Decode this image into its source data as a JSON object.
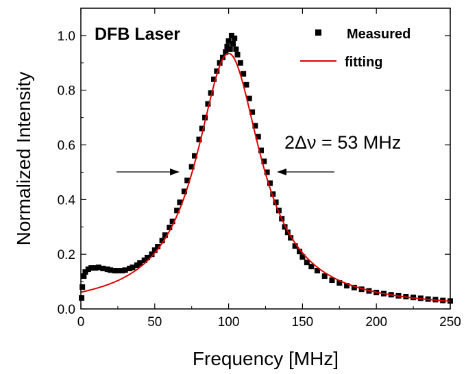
{
  "chart_data": {
    "type": "scatter",
    "title": "DFB Laser",
    "xlabel": "Frequency [MHz]",
    "ylabel": "Normalized Intensity",
    "xlim": [
      0,
      250
    ],
    "ylim": [
      0,
      1.1
    ],
    "xticks": [
      "0",
      "50",
      "100",
      "150",
      "200",
      "250"
    ],
    "yticks": [
      "0.0",
      "0.2",
      "0.4",
      "0.6",
      "0.8",
      "1.0"
    ],
    "annotation": "2Δν = 53 MHz",
    "legend_position": "top-right",
    "grid": false,
    "series": [
      {
        "name": "Measured",
        "style": "square-markers",
        "color": "#000000",
        "points": [
          [
            0.5,
            0.04
          ],
          [
            1,
            0.08
          ],
          [
            2,
            0.12
          ],
          [
            3,
            0.135
          ],
          [
            5,
            0.145
          ],
          [
            7,
            0.15
          ],
          [
            10,
            0.15
          ],
          [
            12,
            0.152
          ],
          [
            15,
            0.148
          ],
          [
            18,
            0.145
          ],
          [
            20,
            0.142
          ],
          [
            23,
            0.14
          ],
          [
            25,
            0.14
          ],
          [
            28,
            0.14
          ],
          [
            30,
            0.142
          ],
          [
            33,
            0.148
          ],
          [
            35,
            0.152
          ],
          [
            38,
            0.16
          ],
          [
            40,
            0.168
          ],
          [
            43,
            0.178
          ],
          [
            45,
            0.188
          ],
          [
            48,
            0.2
          ],
          [
            50,
            0.215
          ],
          [
            52,
            0.228
          ],
          [
            55,
            0.25
          ],
          [
            57,
            0.27
          ],
          [
            60,
            0.298
          ],
          [
            62,
            0.32
          ],
          [
            65,
            0.36
          ],
          [
            67,
            0.39
          ],
          [
            70,
            0.43
          ],
          [
            72,
            0.47
          ],
          [
            75,
            0.52
          ],
          [
            77,
            0.56
          ],
          [
            80,
            0.62
          ],
          [
            82,
            0.66
          ],
          [
            84,
            0.7
          ],
          [
            86,
            0.75
          ],
          [
            88,
            0.79
          ],
          [
            90,
            0.84
          ],
          [
            92,
            0.87
          ],
          [
            94,
            0.9
          ],
          [
            96,
            0.92
          ],
          [
            98,
            0.94
          ],
          [
            99,
            0.96
          ],
          [
            100,
            0.98
          ],
          [
            101,
            0.95
          ],
          [
            102,
            1.0
          ],
          [
            103,
            0.97
          ],
          [
            104,
            0.99
          ],
          [
            105,
            0.95
          ],
          [
            106,
            0.93
          ],
          [
            108,
            0.9
          ],
          [
            110,
            0.86
          ],
          [
            112,
            0.82
          ],
          [
            114,
            0.77
          ],
          [
            116,
            0.72
          ],
          [
            118,
            0.67
          ],
          [
            120,
            0.63
          ],
          [
            122,
            0.58
          ],
          [
            124,
            0.54
          ],
          [
            126,
            0.5
          ],
          [
            128,
            0.46
          ],
          [
            130,
            0.42
          ],
          [
            132,
            0.39
          ],
          [
            134,
            0.36
          ],
          [
            136,
            0.33
          ],
          [
            138,
            0.3
          ],
          [
            140,
            0.28
          ],
          [
            142,
            0.26
          ],
          [
            145,
            0.23
          ],
          [
            148,
            0.21
          ],
          [
            150,
            0.19
          ],
          [
            153,
            0.17
          ],
          [
            156,
            0.155
          ],
          [
            160,
            0.14
          ],
          [
            165,
            0.12
          ],
          [
            170,
            0.105
          ],
          [
            175,
            0.095
          ],
          [
            180,
            0.085
          ],
          [
            185,
            0.078
          ],
          [
            190,
            0.072
          ],
          [
            195,
            0.066
          ],
          [
            200,
            0.06
          ],
          [
            205,
            0.056
          ],
          [
            210,
            0.052
          ],
          [
            215,
            0.048
          ],
          [
            220,
            0.045
          ],
          [
            225,
            0.042
          ],
          [
            230,
            0.039
          ],
          [
            235,
            0.036
          ],
          [
            240,
            0.034
          ],
          [
            245,
            0.031
          ],
          [
            250,
            0.029
          ]
        ]
      },
      {
        "name": "fitting",
        "style": "line",
        "color": "#e00000",
        "center": 100,
        "hwhm": 26.5,
        "peak": 0.935
      }
    ]
  }
}
